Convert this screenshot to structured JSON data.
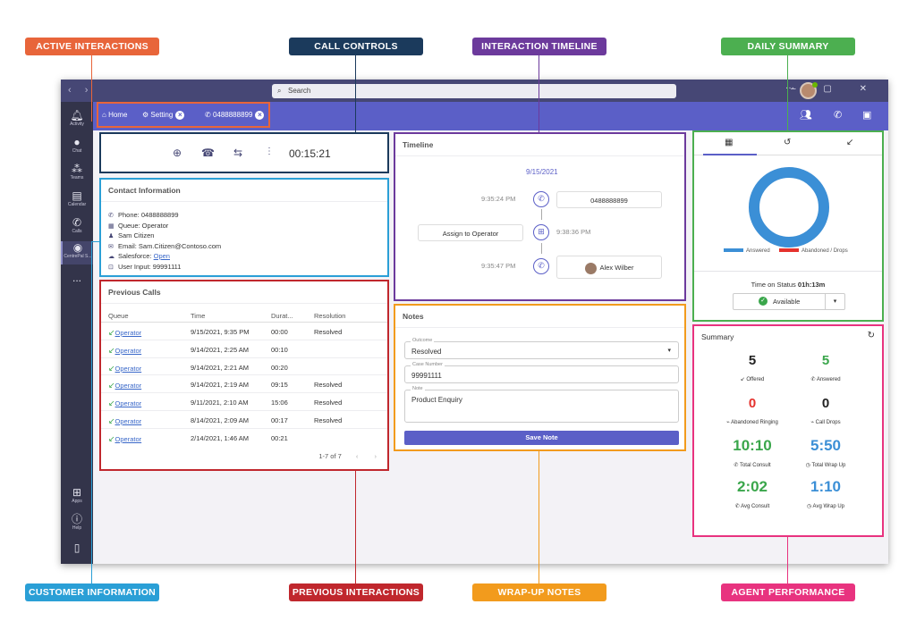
{
  "callouts": {
    "active_interactions": "ACTIVE INTERACTIONS",
    "call_controls": "CALL CONTROLS",
    "interaction_timeline": "INTERACTION TIMELINE",
    "daily_summary": "DAILY SUMMARY",
    "customer_information": "CUSTOMER INFORMATION",
    "previous_interactions": "PREVIOUS INTERACTIONS",
    "wrap_up_notes": "WRAP-UP NOTES",
    "agent_performance": "AGENT PERFORMANCE"
  },
  "titlebar": {
    "search_placeholder": "Search"
  },
  "rail": [
    {
      "label": "Activity",
      "icon": "bell-icon"
    },
    {
      "label": "Chat",
      "icon": "chat-icon"
    },
    {
      "label": "Teams",
      "icon": "teams-icon"
    },
    {
      "label": "Calendar",
      "icon": "calendar-icon"
    },
    {
      "label": "Calls",
      "icon": "phone-icon"
    },
    {
      "label": "CentrePal S...",
      "icon": "app-icon"
    },
    {
      "label": "...",
      "icon": "more-icon"
    },
    {
      "label": "Apps",
      "icon": "apps-icon"
    },
    {
      "label": "Help",
      "icon": "help-icon"
    }
  ],
  "tabs": {
    "home": "Home",
    "setting": "Setting",
    "call": "0488888899"
  },
  "call_controls": {
    "timer": "00:15:21"
  },
  "contact": {
    "title": "Contact Information",
    "phone": "Phone: 0488888899",
    "queue": "Queue: Operator",
    "name": "Sam Citizen",
    "email": "Email: Sam.Citizen@Contoso.com",
    "salesforce_label": "Salesforce:",
    "salesforce_link": "Open",
    "user_input": "User Input: 99991111"
  },
  "previous_calls": {
    "title": "Previous Calls",
    "headers": {
      "queue": "Queue",
      "time": "Time",
      "duration": "Durat...",
      "resolution": "Resolution"
    },
    "rows": [
      {
        "queue": "Operator",
        "time": "9/15/2021, 9:35 PM",
        "duration": "00:00",
        "resolution": "Resolved"
      },
      {
        "queue": "Operator",
        "time": "9/14/2021, 2:25 AM",
        "duration": "00:10",
        "resolution": ""
      },
      {
        "queue": "Operator",
        "time": "9/14/2021, 2:21 AM",
        "duration": "00:20",
        "resolution": ""
      },
      {
        "queue": "Operator",
        "time": "9/14/2021, 2:19 AM",
        "duration": "09:15",
        "resolution": "Resolved"
      },
      {
        "queue": "Operator",
        "time": "9/11/2021, 2:10 AM",
        "duration": "15:06",
        "resolution": "Resolved"
      },
      {
        "queue": "Operator",
        "time": "8/14/2021, 2:09 AM",
        "duration": "00:17",
        "resolution": "Resolved"
      },
      {
        "queue": "Operator",
        "time": "2/14/2021, 1:46 AM",
        "duration": "00:21",
        "resolution": ""
      }
    ],
    "pager": "1-7 of 7"
  },
  "timeline": {
    "title": "Timeline",
    "date": "9/15/2021",
    "events": [
      {
        "time": "9:35:24 PM",
        "detail": "0488888899"
      },
      {
        "time": "9:38:36 PM",
        "detail": "Assign to Operator"
      },
      {
        "time": "9:35:47 PM",
        "detail": "Alex Wilber"
      }
    ]
  },
  "notes": {
    "title": "Notes",
    "outcome_label": "Outcome",
    "outcome_value": "Resolved",
    "case_label": "Case Number",
    "case_value": "99991111",
    "note_label": "Note",
    "note_value": "Product Enquiry",
    "save_label": "Save Note"
  },
  "daily_summary": {
    "legend_answered": "Answered",
    "legend_abandoned": "Abandoned / Drops",
    "time_on_status_label": "Time on Status",
    "time_on_status_value": "01h:13m",
    "status": "Available",
    "answered_fraction": 1.0
  },
  "summary": {
    "title": "Summary",
    "metrics": [
      {
        "value": "5",
        "label": "Offered",
        "color": "#222222"
      },
      {
        "value": "5",
        "label": "Answered",
        "color": "#3aa64b"
      },
      {
        "value": "0",
        "label": "Abandoned Ringing",
        "color": "#e5322d"
      },
      {
        "value": "0",
        "label": "Call Drops",
        "color": "#222222"
      },
      {
        "value": "10:10",
        "label": "Total Consult",
        "color": "#3aa64b"
      },
      {
        "value": "5:50",
        "label": "Total Wrap Up",
        "color": "#3b8fd6"
      },
      {
        "value": "2:02",
        "label": "Avg Consult",
        "color": "#3aa64b"
      },
      {
        "value": "1:10",
        "label": "Avg Wrap Up",
        "color": "#3b8fd6"
      }
    ]
  },
  "colors": {
    "active": "#e8653a",
    "controls": "#1b3a5c",
    "timeline": "#6c3a9c",
    "daily": "#4caf50",
    "customer": "#2a9fd6",
    "previous": "#c0272d",
    "notes": "#f29b1d",
    "agent": "#e8337f"
  }
}
